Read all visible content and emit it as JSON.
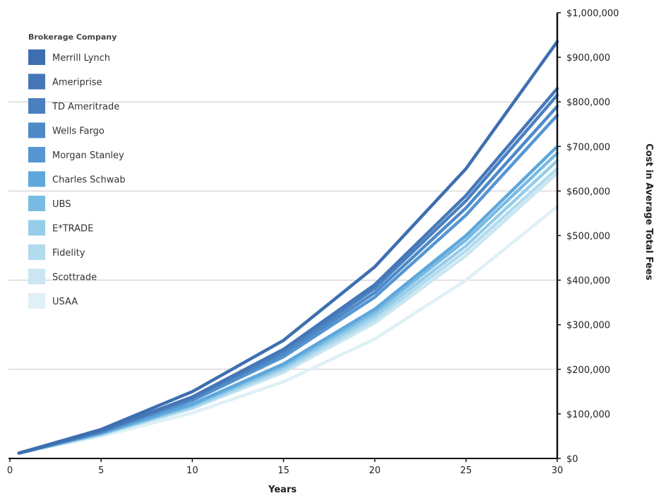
{
  "chart_data": {
    "type": "line",
    "xlabel": "Years",
    "ylabel": "Cost in Average Total Fees",
    "legend_title": "Brokerage Company",
    "legend_position": "top-left",
    "xlim": [
      0,
      30
    ],
    "ylim": [
      0,
      1000000
    ],
    "grid": "horizontal",
    "x_ticks": [
      0,
      5,
      10,
      15,
      20,
      25,
      30
    ],
    "x_tick_labels": [
      "0",
      "5",
      "10",
      "15",
      "20",
      "25",
      "30"
    ],
    "y_ticks": [
      0,
      100000,
      200000,
      300000,
      400000,
      500000,
      600000,
      700000,
      800000,
      900000,
      1000000
    ],
    "y_tick_labels": [
      "$0",
      "$100,000",
      "$200,000",
      "$300,000",
      "$400,000",
      "$500,000",
      "$600,000",
      "$700,000",
      "$800,000",
      "$900,000",
      "$1,000,000"
    ],
    "x": [
      0.5,
      5,
      10,
      15,
      20,
      25,
      30
    ],
    "series": [
      {
        "name": "Merrill Lynch",
        "color": "#3d6fb0",
        "values": [
          12000,
          65000,
          150000,
          265000,
          430000,
          650000,
          935000
        ]
      },
      {
        "name": "Ameriprise",
        "color": "#4577b8",
        "values": [
          12000,
          62000,
          138000,
          245000,
          390000,
          590000,
          830000
        ]
      },
      {
        "name": "TD Ameritrade",
        "color": "#4a80c0",
        "values": [
          12000,
          61000,
          136000,
          240000,
          382000,
          578000,
          815000
        ]
      },
      {
        "name": "Wells Fargo",
        "color": "#4e8ac8",
        "values": [
          12000,
          60000,
          133000,
          234000,
          372000,
          562000,
          790000
        ]
      },
      {
        "name": "Morgan Stanley",
        "color": "#5596d3",
        "values": [
          12000,
          59000,
          130000,
          228000,
          362000,
          546000,
          770000
        ]
      },
      {
        "name": "Charles Schwab",
        "color": "#5ea7dc",
        "values": [
          12000,
          57000,
          122000,
          212000,
          335000,
          500000,
          700000
        ]
      },
      {
        "name": "UBS",
        "color": "#79bbe2",
        "values": [
          12000,
          56000,
          120000,
          208000,
          328000,
          490000,
          685000
        ]
      },
      {
        "name": "E*TRADE",
        "color": "#95cde9",
        "values": [
          12000,
          55000,
          117000,
          203000,
          320000,
          477000,
          668000
        ]
      },
      {
        "name": "Fidelity",
        "color": "#b2dbef",
        "values": [
          12000,
          54000,
          114000,
          198000,
          312000,
          466000,
          650000
        ]
      },
      {
        "name": "Scottrade",
        "color": "#cbe6f2",
        "values": [
          12000,
          53000,
          112000,
          193000,
          304000,
          455000,
          640000
        ]
      },
      {
        "name": "USAA",
        "color": "#dff0f6",
        "values": [
          12000,
          50000,
          102000,
          172000,
          268000,
          400000,
          565000
        ]
      }
    ]
  }
}
